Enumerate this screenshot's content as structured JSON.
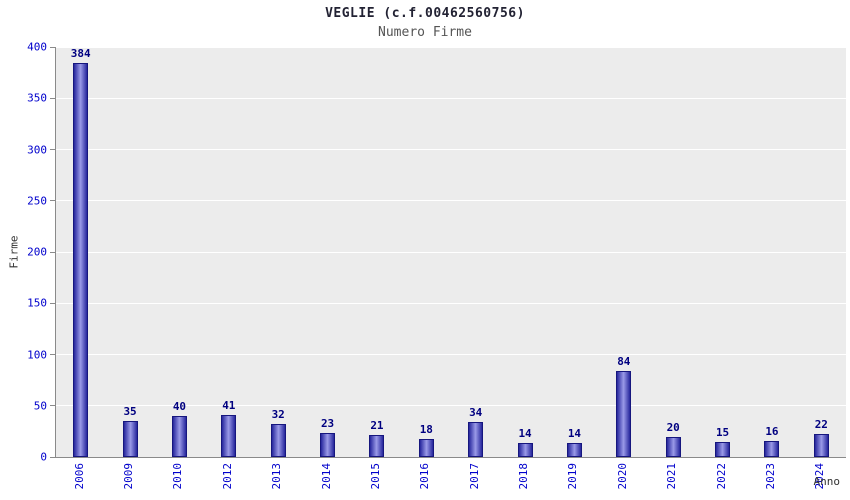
{
  "chart_data": {
    "type": "bar",
    "title": "VEGLIE (c.f.00462560756)",
    "subtitle": "Numero Firme",
    "xlabel": "Anno",
    "ylabel": "Firme",
    "categories": [
      "2006",
      "2009",
      "2010",
      "2012",
      "2013",
      "2014",
      "2015",
      "2016",
      "2017",
      "2018",
      "2019",
      "2020",
      "2021",
      "2022",
      "2023",
      "2024"
    ],
    "values": [
      384,
      35,
      40,
      41,
      32,
      23,
      21,
      18,
      34,
      14,
      14,
      84,
      20,
      15,
      16,
      22
    ],
    "ylim": [
      0,
      400
    ],
    "ytick_step": 50,
    "grid": "horizontal",
    "legend": "none",
    "colors": {
      "bar_edge": "#16167e",
      "bar_dark": "#26269c",
      "bar_light": "#9a9ae8",
      "tick_label": "#0000cc",
      "value_label": "#000080",
      "plot_bg": "#ececec",
      "gridline": "#ffffff"
    }
  }
}
